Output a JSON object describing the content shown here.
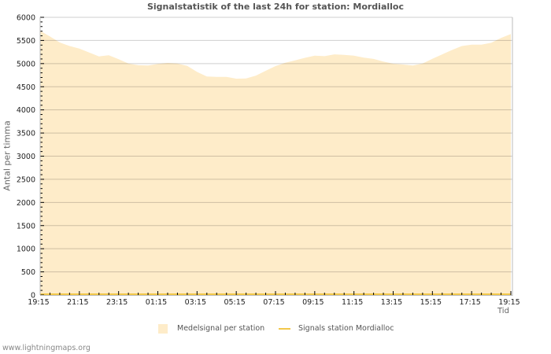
{
  "header": {
    "title": "Signalstatistik of the last 24h for station: Mordialloc"
  },
  "colors": {
    "fill": "#feecc9",
    "line": "#f2c84b",
    "grid": "rgba(0,0,0,0.19)",
    "axis": "#bbbbbb",
    "tick_text": "#222222"
  },
  "legend": {
    "items": [
      {
        "label": "Medelsignal per station",
        "type": "area",
        "icon": "area-swatch"
      },
      {
        "label": "Signals station Mordialloc",
        "type": "line",
        "icon": "line-swatch"
      }
    ]
  },
  "footer": {
    "text": "www.lightningmaps.org"
  },
  "chart_data": {
    "type": "area",
    "title": "Signalstatistik of the last 24h for station: Mordialloc",
    "xlabel": "Tid",
    "ylabel": "Antal per timma",
    "ylim": [
      0,
      6000
    ],
    "yticks": [
      0,
      500,
      1000,
      1500,
      2000,
      2500,
      3000,
      3500,
      4000,
      4500,
      5000,
      5500,
      6000
    ],
    "xtick_labels": [
      "19:15",
      "21:15",
      "23:15",
      "01:15",
      "03:15",
      "05:15",
      "07:15",
      "09:15",
      "11:15",
      "13:15",
      "15:15",
      "17:15",
      "19:15"
    ],
    "grid": true,
    "legend_position": "bottom",
    "x_step_minutes": 30,
    "x_start": "19:15",
    "series": [
      {
        "name": "Medelsignal per station",
        "kind": "area",
        "values": [
          5710,
          5585,
          5456,
          5380,
          5325,
          5240,
          5155,
          5180,
          5095,
          5000,
          4965,
          4958,
          4992,
          5015,
          5000,
          4950,
          4820,
          4720,
          4713,
          4713,
          4674,
          4680,
          4740,
          4845,
          4946,
          5020,
          5071,
          5125,
          5173,
          5160,
          5200,
          5190,
          5173,
          5130,
          5100,
          5045,
          4997,
          4980,
          4958,
          5000,
          5105,
          5200,
          5295,
          5380,
          5411,
          5411,
          5450,
          5555,
          5640
        ]
      },
      {
        "name": "Signals station Mordialloc",
        "kind": "line",
        "values": [
          0,
          0,
          0,
          0,
          0,
          0,
          0,
          0,
          0,
          0,
          0,
          0,
          0,
          0,
          0,
          0,
          0,
          0,
          0,
          0,
          0,
          0,
          0,
          0,
          0,
          0,
          0,
          0,
          0,
          0,
          0,
          0,
          0,
          0,
          0,
          0,
          0,
          0,
          0,
          0,
          0,
          0,
          0,
          0,
          0,
          0,
          0,
          0,
          0
        ]
      }
    ]
  }
}
